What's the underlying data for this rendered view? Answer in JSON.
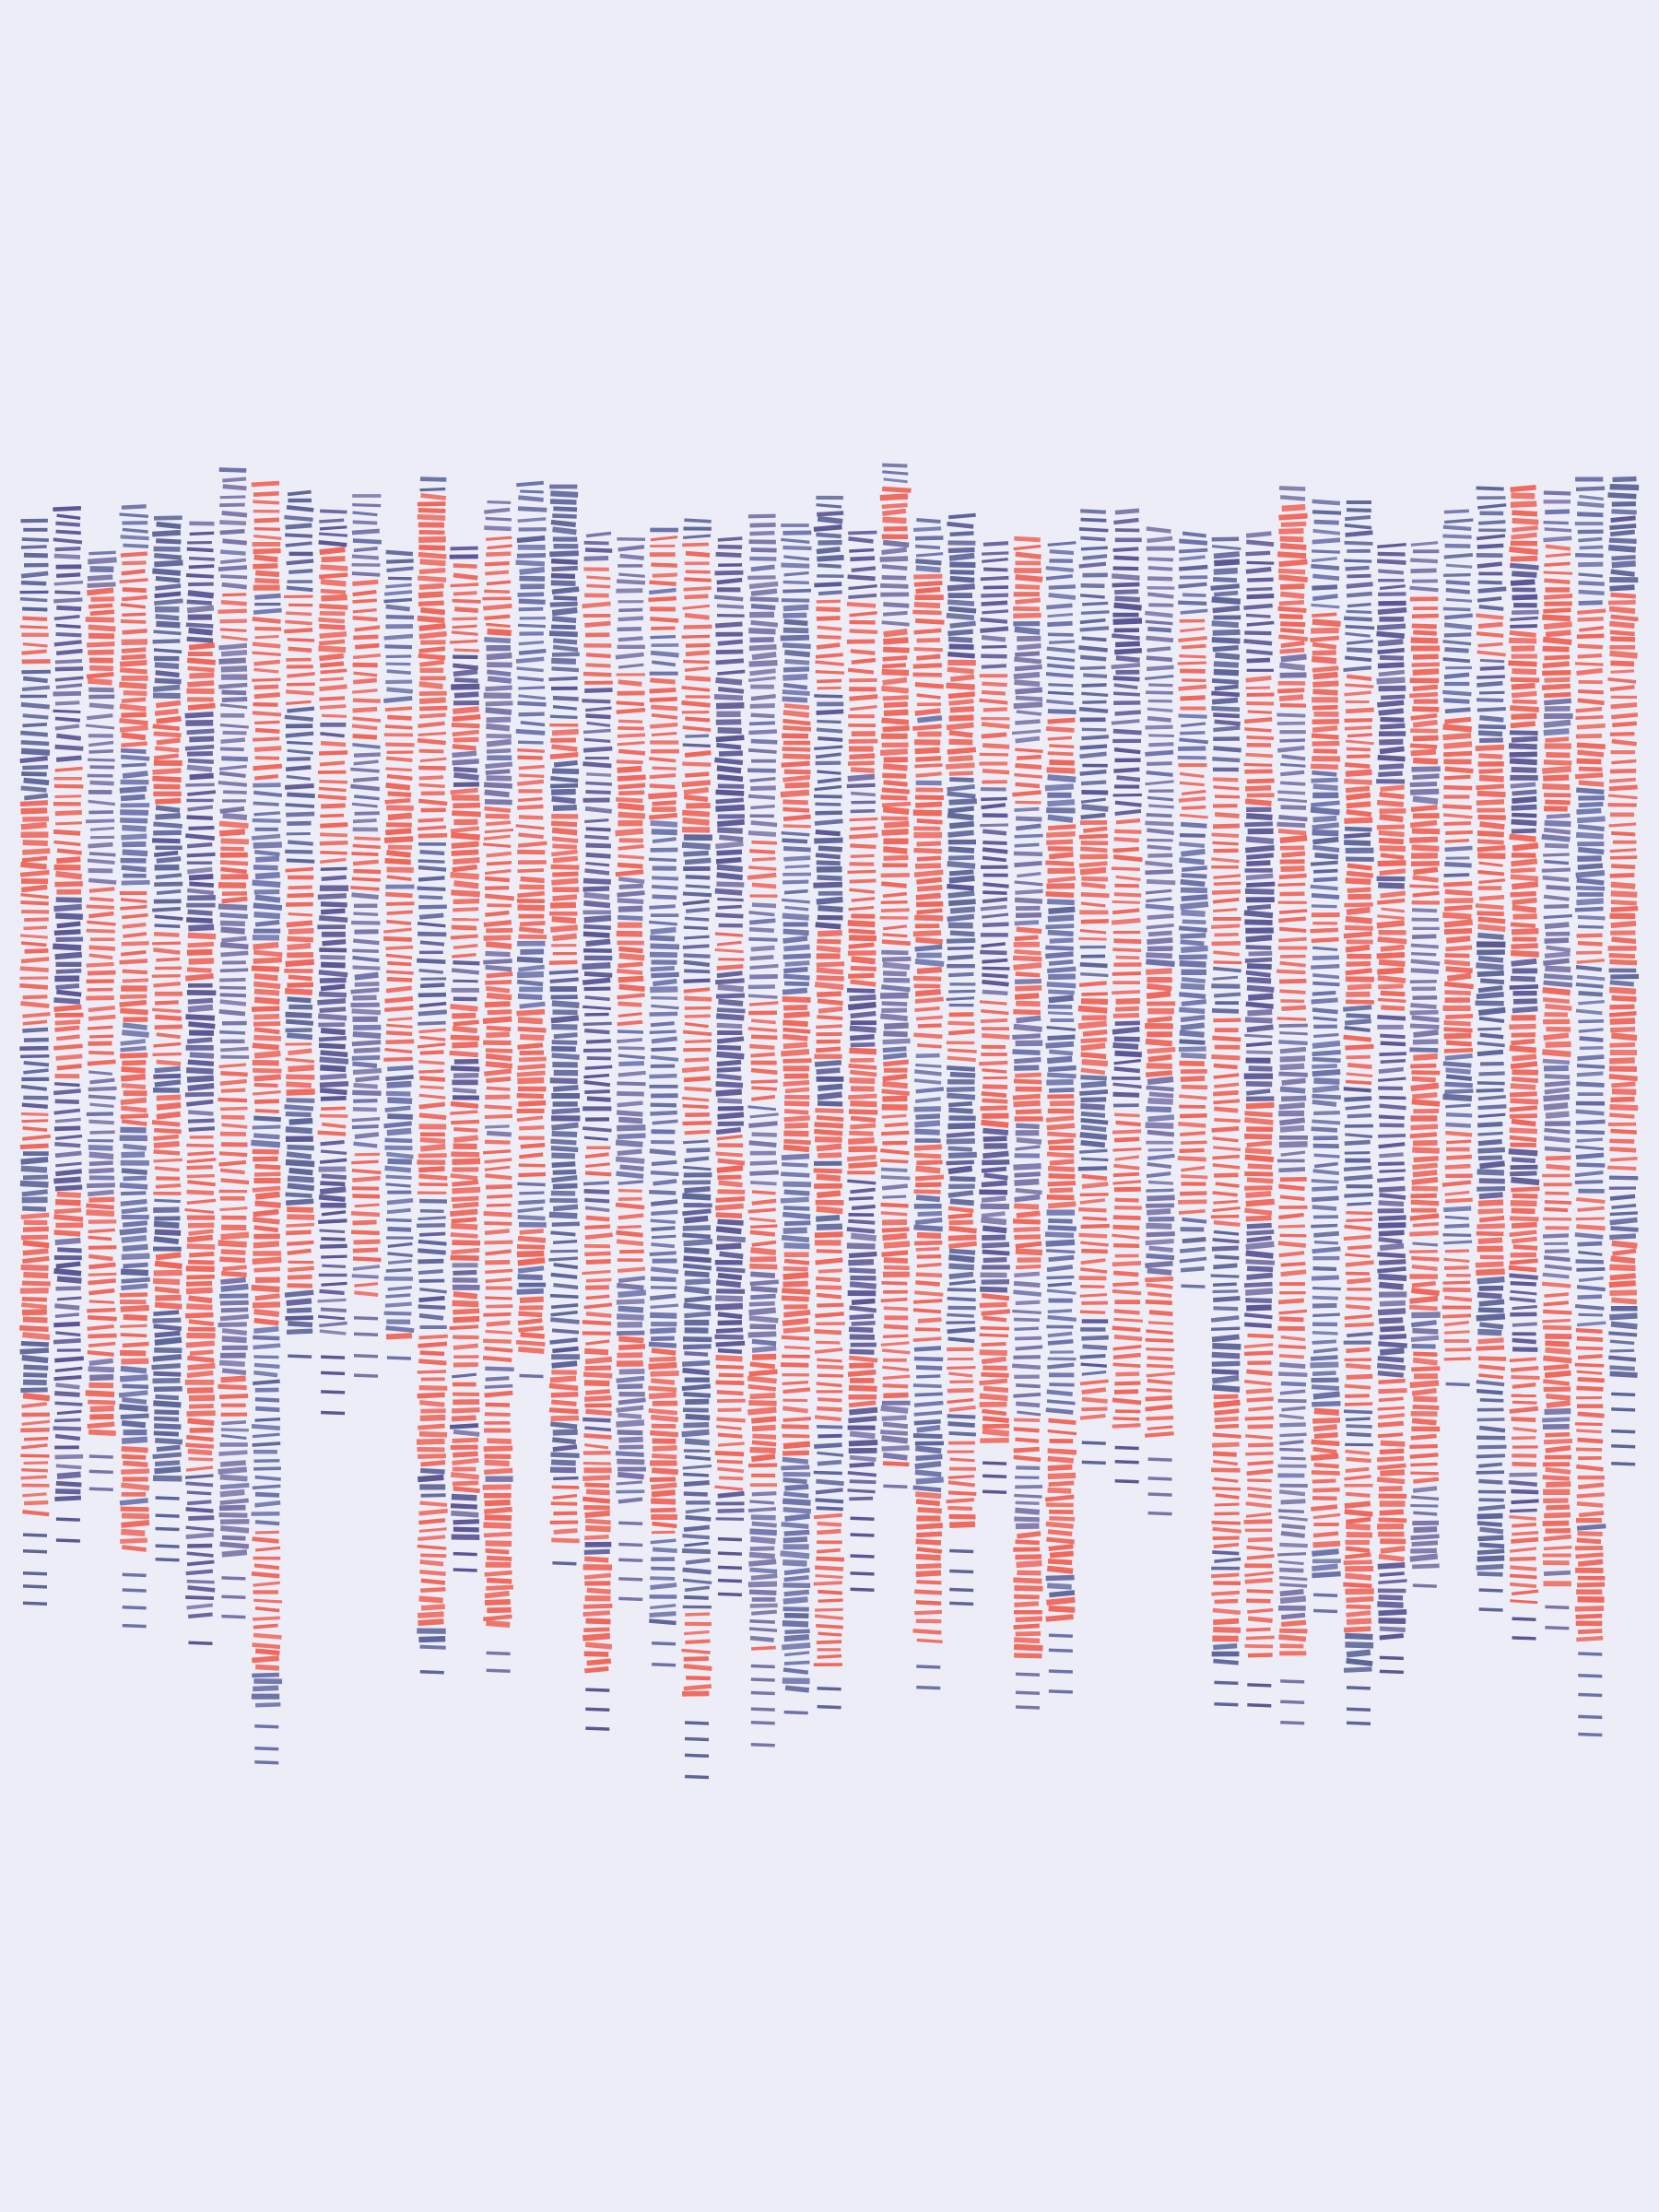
{
  "artwork": {
    "background": "#EDEDF8",
    "palette": {
      "accent": "#F0675A",
      "slate": "#5E6699",
      "violet": "#5B5794",
      "lavender": "#7A75A8",
      "periwinkle": "#6C73AA"
    },
    "column_count": 49
  }
}
